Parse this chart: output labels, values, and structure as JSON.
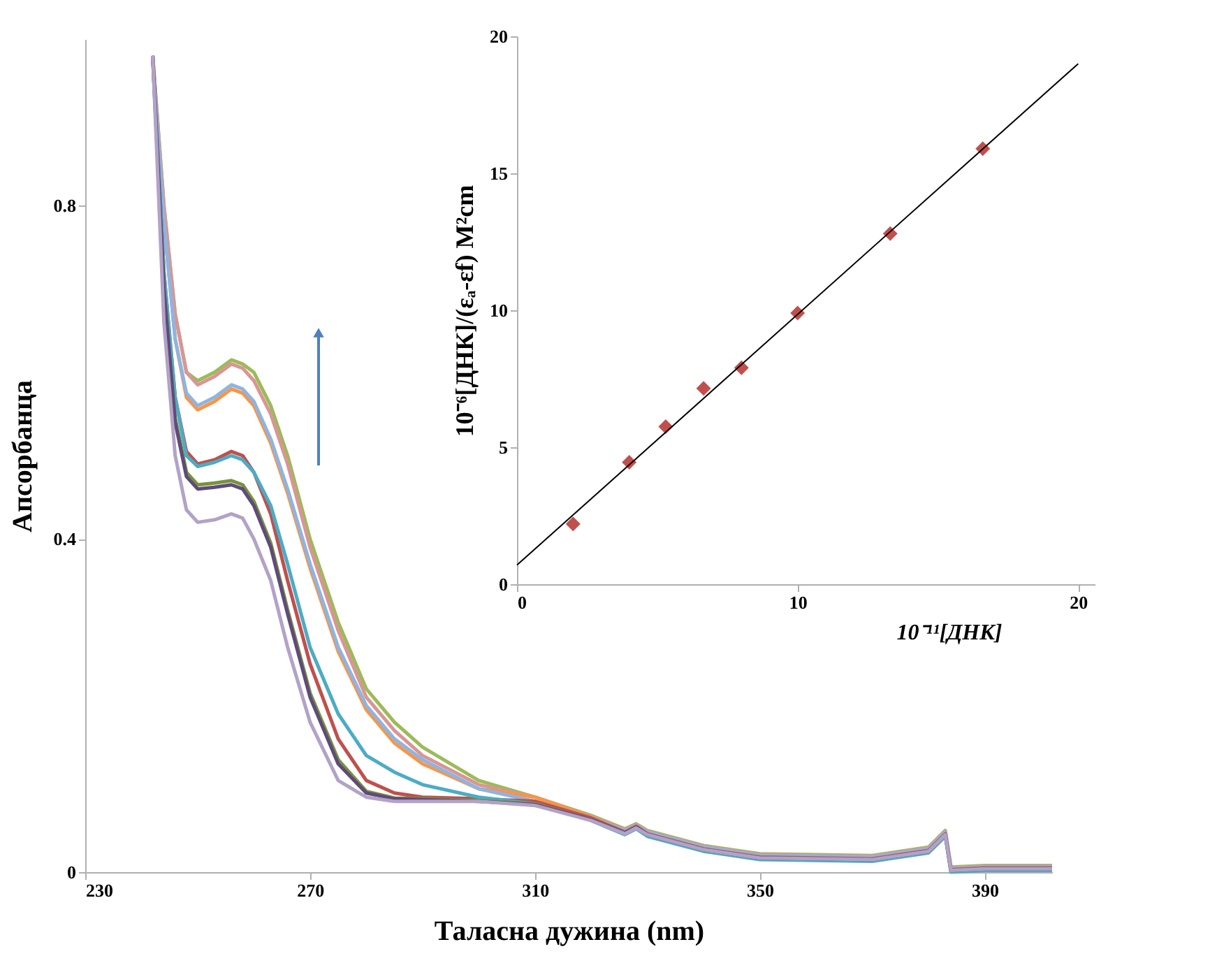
{
  "chart_data": [
    {
      "type": "line",
      "xlabel": "Таласна дужина (nm)",
      "ylabel": "Апсорбанца",
      "xlim": [
        230,
        402
      ],
      "ylim": [
        0,
        1.0
      ],
      "xticks": [
        230,
        270,
        310,
        350,
        390
      ],
      "yticks": [
        0,
        0.4,
        0.8
      ],
      "grid": false,
      "marker": "none",
      "line_style": "solid",
      "x": [
        242,
        244,
        246,
        248,
        250,
        253,
        256,
        258,
        260,
        263,
        266,
        270,
        275,
        280,
        285,
        290,
        300,
        310,
        320,
        326,
        328,
        330,
        340,
        350,
        370,
        380,
        383,
        384,
        390,
        402
      ],
      "series": [
        {
          "color": "#9bbb59",
          "values": [
            0.98,
            0.8,
            0.67,
            0.6,
            0.59,
            0.6,
            0.615,
            0.61,
            0.6,
            0.56,
            0.5,
            0.4,
            0.3,
            0.22,
            0.18,
            0.15,
            0.11,
            0.09,
            0.068,
            0.052,
            0.058,
            0.05,
            0.032,
            0.022,
            0.02,
            0.03,
            0.05,
            0.006,
            0.008,
            0.008
          ]
        },
        {
          "color": "#d99694",
          "values": [
            0.98,
            0.8,
            0.67,
            0.6,
            0.585,
            0.595,
            0.61,
            0.605,
            0.59,
            0.55,
            0.49,
            0.39,
            0.29,
            0.21,
            0.17,
            0.14,
            0.105,
            0.09,
            0.067,
            0.051,
            0.057,
            0.049,
            0.031,
            0.021,
            0.019,
            0.029,
            0.049,
            0.005,
            0.007,
            0.007
          ]
        },
        {
          "color": "#f79646",
          "values": [
            0.98,
            0.78,
            0.64,
            0.57,
            0.555,
            0.565,
            0.58,
            0.575,
            0.56,
            0.515,
            0.455,
            0.365,
            0.265,
            0.195,
            0.155,
            0.13,
            0.1,
            0.09,
            0.066,
            0.05,
            0.056,
            null,
            null,
            null,
            null,
            null,
            null,
            null,
            null,
            null
          ]
        },
        {
          "color": "#8eb4e3",
          "values": [
            0.98,
            0.78,
            0.64,
            0.575,
            0.56,
            0.57,
            0.585,
            0.58,
            0.565,
            0.52,
            0.46,
            0.37,
            0.27,
            0.2,
            0.16,
            0.135,
            0.1,
            0.085,
            0.065,
            0.05,
            0.056,
            0.048,
            0.03,
            0.02,
            0.018,
            0.028,
            0.048,
            0.004,
            0.006,
            0.006
          ]
        },
        {
          "color": "#c0504d",
          "values": [
            0.98,
            0.72,
            0.57,
            0.505,
            0.49,
            0.495,
            0.505,
            0.5,
            0.48,
            0.43,
            0.35,
            0.25,
            0.16,
            0.11,
            0.095,
            0.09,
            0.088,
            0.085,
            0.065,
            0.048,
            0.055,
            0.046,
            0.028,
            0.018,
            0.016,
            0.026,
            0.046,
            0.003,
            0.005,
            0.005
          ]
        },
        {
          "color": "#4bacc6",
          "values": [
            0.98,
            0.72,
            0.57,
            0.5,
            0.487,
            0.492,
            0.5,
            0.495,
            0.48,
            0.44,
            0.37,
            0.27,
            0.19,
            0.14,
            0.12,
            0.105,
            0.09,
            0.082,
            0.062,
            0.045,
            0.052,
            0.043,
            0.025,
            0.015,
            0.013,
            0.023,
            0.043,
            0.0,
            0.002,
            0.002
          ]
        },
        {
          "color": "#77933c",
          "values": [
            0.98,
            0.7,
            0.545,
            0.48,
            0.465,
            0.467,
            0.47,
            0.465,
            0.445,
            0.395,
            0.315,
            0.215,
            0.135,
            0.097,
            0.089,
            0.088,
            0.086,
            0.082,
            0.063,
            0.047,
            0.054,
            0.045,
            0.027,
            0.017,
            0.015,
            0.025,
            0.045,
            0.002,
            0.004,
            0.004
          ]
        },
        {
          "color": "#604a7b",
          "values": [
            0.98,
            0.7,
            0.54,
            0.475,
            0.46,
            0.462,
            0.465,
            0.46,
            0.44,
            0.39,
            0.31,
            0.21,
            0.13,
            0.095,
            0.088,
            0.087,
            0.085,
            0.081,
            0.063,
            0.047,
            0.054,
            0.045,
            0.027,
            0.017,
            0.015,
            0.025,
            0.045,
            0.002,
            0.004,
            0.004
          ]
        },
        {
          "color": "#b3a2c7",
          "values": [
            0.98,
            0.66,
            0.5,
            0.435,
            0.42,
            0.423,
            0.43,
            0.425,
            0.4,
            0.35,
            0.27,
            0.18,
            0.11,
            0.09,
            0.085,
            0.085,
            0.085,
            0.08,
            0.062,
            0.046,
            0.053,
            0.045,
            0.027,
            0.017,
            0.015,
            0.025,
            0.045,
            0.002,
            0.004,
            0.004
          ]
        }
      ]
    },
    {
      "type": "scatter",
      "xlabel": "10⁻¹¹[ДНК]",
      "ylabel": "10⁻⁶[ДНК]/(εₐ-εf) M²cm",
      "xlim": [
        0,
        24
      ],
      "ylim": [
        0,
        20
      ],
      "xticks": [
        0,
        10,
        20
      ],
      "yticks": [
        0,
        5,
        10,
        15,
        20
      ],
      "grid": false,
      "series": [
        {
          "type": "scatter",
          "marker": "diamond",
          "color": "#c0504d",
          "x": [
            2.0,
            4.0,
            5.3,
            6.65,
            8.0,
            10.0,
            13.3,
            16.6
          ],
          "values": [
            2.2,
            4.45,
            5.75,
            7.15,
            7.9,
            9.9,
            12.8,
            15.9
          ]
        },
        {
          "type": "line",
          "marker": "none",
          "color": "#000000",
          "x": [
            0,
            20
          ],
          "values": [
            0.7,
            19.0
          ]
        }
      ]
    }
  ]
}
